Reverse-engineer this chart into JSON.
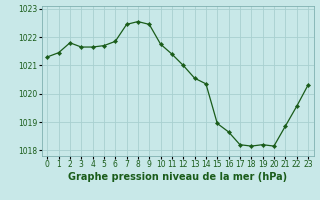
{
  "x": [
    0,
    1,
    2,
    3,
    4,
    5,
    6,
    7,
    8,
    9,
    10,
    11,
    12,
    13,
    14,
    15,
    16,
    17,
    18,
    19,
    20,
    21,
    22,
    23
  ],
  "y": [
    1021.3,
    1021.45,
    1021.8,
    1021.65,
    1021.65,
    1021.7,
    1021.85,
    1022.45,
    1022.55,
    1022.45,
    1021.75,
    1021.4,
    1021.0,
    1020.55,
    1020.35,
    1018.95,
    1018.65,
    1018.2,
    1018.15,
    1018.2,
    1018.15,
    1018.85,
    1019.55,
    1020.3
  ],
  "line_color": "#1a5c1a",
  "marker": "D",
  "marker_size": 2.2,
  "bg_color": "#c8e8e8",
  "grid_color": "#a8d0d0",
  "xlabel": "Graphe pression niveau de la mer (hPa)",
  "xlabel_color": "#1a5c1a",
  "tick_labels": [
    "0",
    "1",
    "2",
    "3",
    "4",
    "5",
    "6",
    "7",
    "8",
    "9",
    "10",
    "11",
    "12",
    "13",
    "14",
    "15",
    "16",
    "17",
    "18",
    "19",
    "20",
    "21",
    "22",
    "23"
  ],
  "ylim": [
    1017.8,
    1023.1
  ],
  "xlim": [
    -0.5,
    23.5
  ],
  "yticks": [
    1018,
    1019,
    1020,
    1021,
    1022,
    1023
  ],
  "tick_color": "#1a5c1a",
  "tick_fontsize": 5.5,
  "xlabel_fontsize": 7.0
}
